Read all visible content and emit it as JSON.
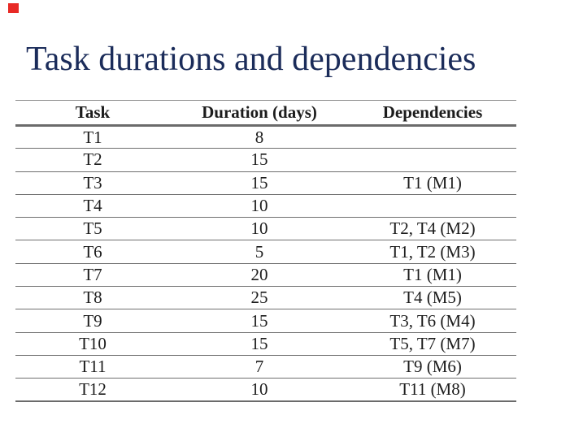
{
  "page": {
    "background_color": "#ffffff",
    "text_color": "#1c1c1c",
    "rule_color": "#6f6f6f"
  },
  "decoration": {
    "red_marker_color": "#e82a26"
  },
  "title": {
    "text": "Task durations and dependencies",
    "color": "#1b2c5a"
  },
  "table": {
    "headers": {
      "task": "Task",
      "duration": "Duration (days)",
      "dependencies": "Dependencies"
    },
    "rows": [
      {
        "task": "T1",
        "duration": "8",
        "dependencies": ""
      },
      {
        "task": "T2",
        "duration": "15",
        "dependencies": ""
      },
      {
        "task": "T3",
        "duration": "15",
        "dependencies": "T1 (M1)"
      },
      {
        "task": "T4",
        "duration": "10",
        "dependencies": ""
      },
      {
        "task": "T5",
        "duration": "10",
        "dependencies": "T2, T4 (M2)"
      },
      {
        "task": "T6",
        "duration": "5",
        "dependencies": "T1, T2 (M3)"
      },
      {
        "task": "T7",
        "duration": "20",
        "dependencies": "T1 (M1)"
      },
      {
        "task": "T8",
        "duration": "25",
        "dependencies": "T4 (M5)"
      },
      {
        "task": "T9",
        "duration": "15",
        "dependencies": "T3, T6 (M4)"
      },
      {
        "task": "T10",
        "duration": "15",
        "dependencies": "T5, T7 (M7)"
      },
      {
        "task": "T11",
        "duration": "7",
        "dependencies": "T9 (M6)"
      },
      {
        "task": "T12",
        "duration": "10",
        "dependencies": "T11 (M8)"
      }
    ]
  }
}
